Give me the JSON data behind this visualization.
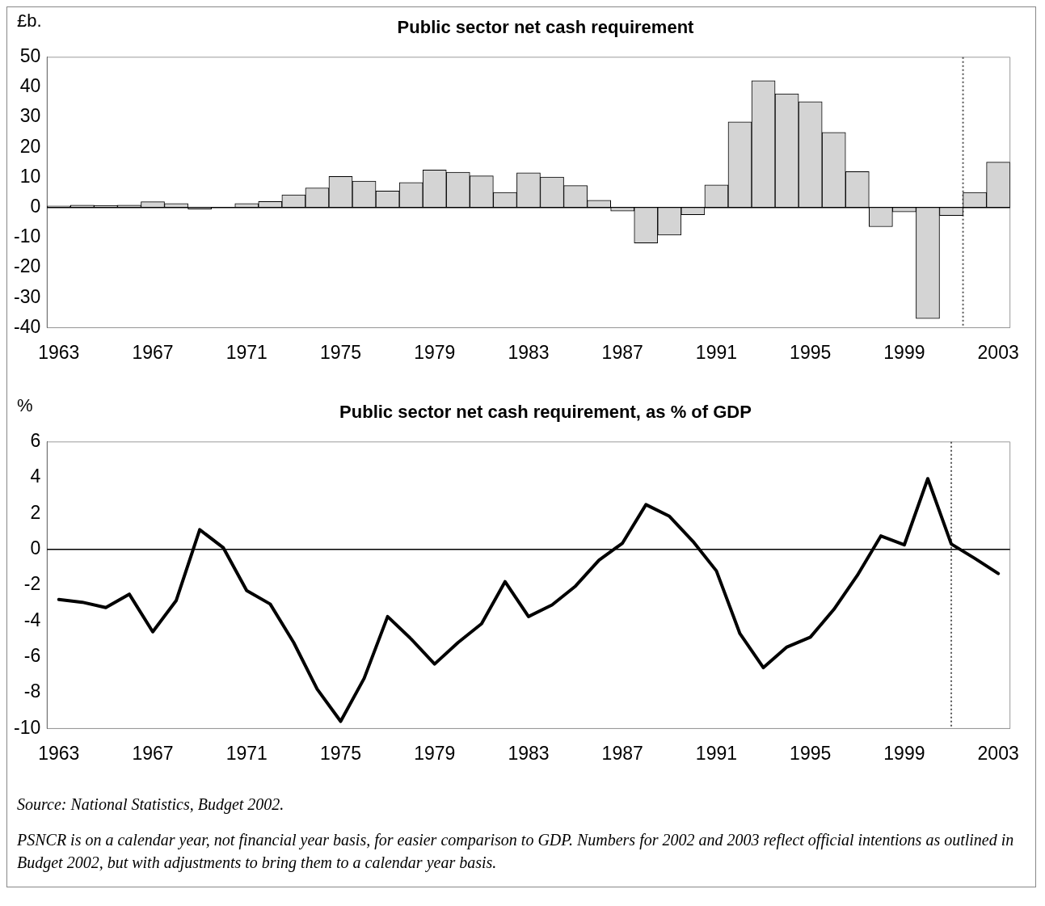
{
  "chart_data": [
    {
      "type": "bar",
      "title": "Public sector net cash requirement",
      "ylabel": "£b.",
      "x": [
        1963,
        1964,
        1965,
        1966,
        1967,
        1968,
        1969,
        1970,
        1971,
        1972,
        1973,
        1974,
        1975,
        1976,
        1977,
        1978,
        1979,
        1980,
        1981,
        1982,
        1983,
        1984,
        1985,
        1986,
        1987,
        1988,
        1989,
        1990,
        1991,
        1992,
        1993,
        1994,
        1995,
        1996,
        1997,
        1998,
        1999,
        2000,
        2001,
        2002,
        2003
      ],
      "values": [
        0.5,
        0.8,
        0.7,
        0.8,
        1.9,
        1.3,
        -0.5,
        0,
        1.3,
        2,
        4.2,
        6.5,
        10.3,
        8.8,
        5.5,
        8.3,
        12.5,
        11.7,
        10.5,
        5,
        11.5,
        10.1,
        7.3,
        2.4,
        -1.2,
        -11.8,
        -9.2,
        -2.4,
        7.5,
        28.5,
        42.2,
        37.8,
        35.2,
        25,
        11.9,
        -6.4,
        -1.5,
        -37,
        -2.7,
        5,
        15.1
      ],
      "color": "#d4d4d4",
      "xlim": [
        1962.5,
        2003.5
      ],
      "xticks": [
        1963,
        1967,
        1971,
        1975,
        1979,
        1983,
        1987,
        1991,
        1995,
        1999,
        2003
      ],
      "ylim": [
        -40,
        50
      ],
      "yticks": [
        -40,
        -30,
        -20,
        -10,
        0,
        10,
        20,
        30,
        40,
        50
      ],
      "grid": false,
      "legend": false,
      "ref_lines": [
        {
          "axis": "x",
          "value": 2001.5,
          "label": null,
          "color": "#555555",
          "line_style": "dotted"
        },
        {
          "axis": "y",
          "value": 0,
          "label": null,
          "color": "#000000",
          "line_style": "solid"
        }
      ]
    },
    {
      "type": "line",
      "title": "Public sector net cash requirement, as % of GDP",
      "ylabel": "%",
      "x": [
        1963,
        1964,
        1965,
        1966,
        1967,
        1968,
        1969,
        1970,
        1971,
        1972,
        1973,
        1974,
        1975,
        1976,
        1977,
        1978,
        1979,
        1980,
        1981,
        1982,
        1983,
        1984,
        1985,
        1986,
        1987,
        1988,
        1989,
        1990,
        1991,
        1992,
        1993,
        1994,
        1995,
        1996,
        1997,
        1998,
        1999,
        2000,
        2001,
        2002,
        2003
      ],
      "values": [
        -2.8,
        -2.95,
        -3.25,
        -2.5,
        -4.6,
        -2.85,
        1.1,
        0.1,
        -2.3,
        -3.05,
        -5.2,
        -7.8,
        -9.6,
        -7.2,
        -3.75,
        -5,
        -6.4,
        -5.2,
        -4.15,
        -1.8,
        -3.75,
        -3.1,
        -2.05,
        -0.6,
        0.35,
        2.5,
        1.85,
        0.45,
        -1.2,
        -4.7,
        -6.6,
        -5.45,
        -4.9,
        -3.35,
        -1.45,
        0.75,
        0.25,
        3.95,
        0.3,
        -0.5,
        -1.35
      ],
      "color": "#000000",
      "marker": "none",
      "line_style": "solid",
      "xlim": [
        1962.5,
        2003.5
      ],
      "xticks": [
        1963,
        1967,
        1971,
        1975,
        1979,
        1983,
        1987,
        1991,
        1995,
        1999,
        2003
      ],
      "ylim": [
        -10,
        6
      ],
      "yticks": [
        -10,
        -8,
        -6,
        -4,
        -2,
        0,
        2,
        4,
        6
      ],
      "grid": false,
      "legend": false,
      "ref_lines": [
        {
          "axis": "x",
          "value": 2001,
          "label": null,
          "color": "#555555",
          "line_style": "dotted"
        },
        {
          "axis": "y",
          "value": 0,
          "label": null,
          "color": "#000000",
          "line_style": "solid"
        }
      ],
      "annotations": [
        "Source: National Statistics, Budget 2002.",
        "PSNCR is on a calendar year, not financial year basis, for easier comparison to GDP. Numbers for 2002 and 2003 reflect official intentions as outlined in Budget 2002, but with adjustments to bring them to a calendar year basis."
      ]
    }
  ]
}
